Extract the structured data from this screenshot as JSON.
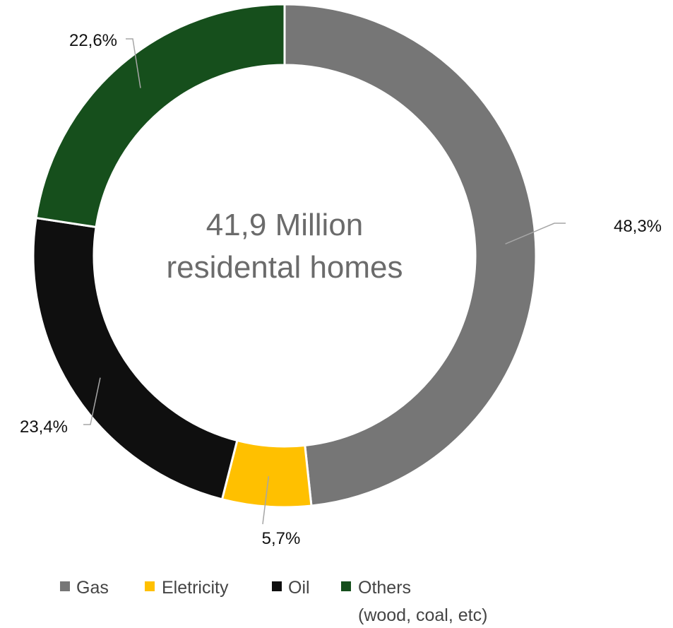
{
  "chart_data": {
    "type": "pie",
    "variant": "donut",
    "center_label": [
      "41,9 Million",
      "residental homes"
    ],
    "categories": [
      "Gas",
      "Eletricity",
      "Oil",
      "Others"
    ],
    "values": [
      48.3,
      5.7,
      23.4,
      22.6
    ],
    "data_labels": [
      "48,3%",
      "5,7%",
      "23,4%",
      "22,6%"
    ],
    "colors": [
      "#767676",
      "#FFC000",
      "#0F0F0F",
      "#164F1C"
    ],
    "legend": {
      "placement": "bottom",
      "entries": [
        {
          "label": "Gas",
          "color": "#767676"
        },
        {
          "label": "Eletricity",
          "color": "#FFC000"
        },
        {
          "label": "Oil",
          "color": "#0F0F0F"
        },
        {
          "label": "Others",
          "label_line2": "(wood, coal, etc)",
          "color": "#164F1C"
        }
      ]
    },
    "start": "12 o'clock",
    "direction": "clockwise"
  }
}
